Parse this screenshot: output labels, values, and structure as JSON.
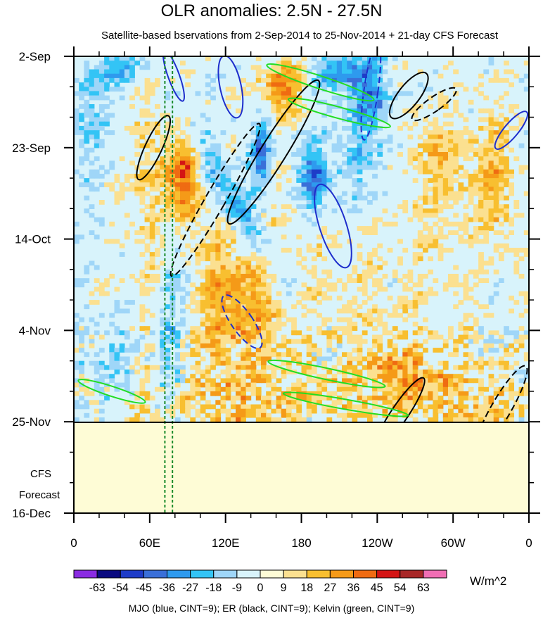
{
  "chart_data": {
    "type": "heatmap",
    "title": "OLR anomalies: 2.5N - 27.5N",
    "subtitle": "Satellite-based bservations from 2-Sep-2014 to 25-Nov-2014 + 21-day CFS Forecast",
    "x_ticks": [
      "0",
      "60E",
      "120E",
      "180",
      "120W",
      "60W",
      "0"
    ],
    "x_tick_values": [
      0,
      60,
      120,
      180,
      240,
      300,
      360
    ],
    "y_ticks": [
      "2-Sep",
      "23-Sep",
      "14-Oct",
      "4-Nov",
      "25-Nov",
      "16-Dec"
    ],
    "y_tick_values": [
      0,
      21,
      42,
      63,
      84,
      105
    ],
    "observation_end": "25-Nov",
    "forecast_label_lines": [
      "CFS",
      "Forecast"
    ],
    "colorbar": {
      "levels": [
        "-63",
        "-54",
        "-45",
        "-36",
        "-27",
        "-18",
        "-9",
        "0",
        "9",
        "18",
        "27",
        "36",
        "45",
        "54",
        "63"
      ],
      "colors": [
        "#8a2be2",
        "#0a0a80",
        "#1e3cc8",
        "#3a6fd8",
        "#2e9aee",
        "#33c4f5",
        "#9fd6f8",
        "#d8f3fb",
        "#fefcd6",
        "#fbe090",
        "#f8bf30",
        "#f59a18",
        "#ef6b12",
        "#d41414",
        "#a82828",
        "#f06eb4"
      ],
      "units": "W/m^2"
    },
    "footnote": "MJO (blue, CINT=9); ER (black, CINT=9); Kelvin (green, CINT=9)",
    "reference_lines_longitude": [
      72,
      78
    ],
    "mjo_contours": [
      {
        "lon": 79,
        "day": 4.5,
        "sign": "pos"
      },
      {
        "lon": 124,
        "day": 7,
        "sign": "pos"
      },
      {
        "lon": 205,
        "day": 39,
        "sign": "pos"
      },
      {
        "lon": 235,
        "day": 8,
        "sign": "neg"
      },
      {
        "lon": 133,
        "day": 61,
        "sign": "neg"
      },
      {
        "lon": 346,
        "day": 17,
        "sign": "pos"
      }
    ],
    "er_contours": [
      {
        "lon": 63,
        "day": 21,
        "sign": "pos"
      },
      {
        "lon": 158,
        "day": 22,
        "sign": "pos"
      },
      {
        "lon": 112,
        "day": 33,
        "sign": "neg"
      },
      {
        "lon": 265,
        "day": 9,
        "sign": "pos"
      },
      {
        "lon": 285,
        "day": 11,
        "sign": "neg"
      },
      {
        "lon": 258,
        "day": 82,
        "sign": "pos"
      },
      {
        "lon": 338,
        "day": 81,
        "sign": "neg"
      }
    ],
    "kelvin_contours": [
      {
        "lon": 195,
        "day": 6,
        "sign": "pos"
      },
      {
        "lon": 210,
        "day": 13,
        "sign": "pos"
      },
      {
        "lon": 30,
        "day": 77,
        "sign": "pos"
      },
      {
        "lon": 200,
        "day": 73,
        "sign": "pos"
      },
      {
        "lon": 215,
        "day": 80,
        "sign": "pos"
      }
    ]
  }
}
